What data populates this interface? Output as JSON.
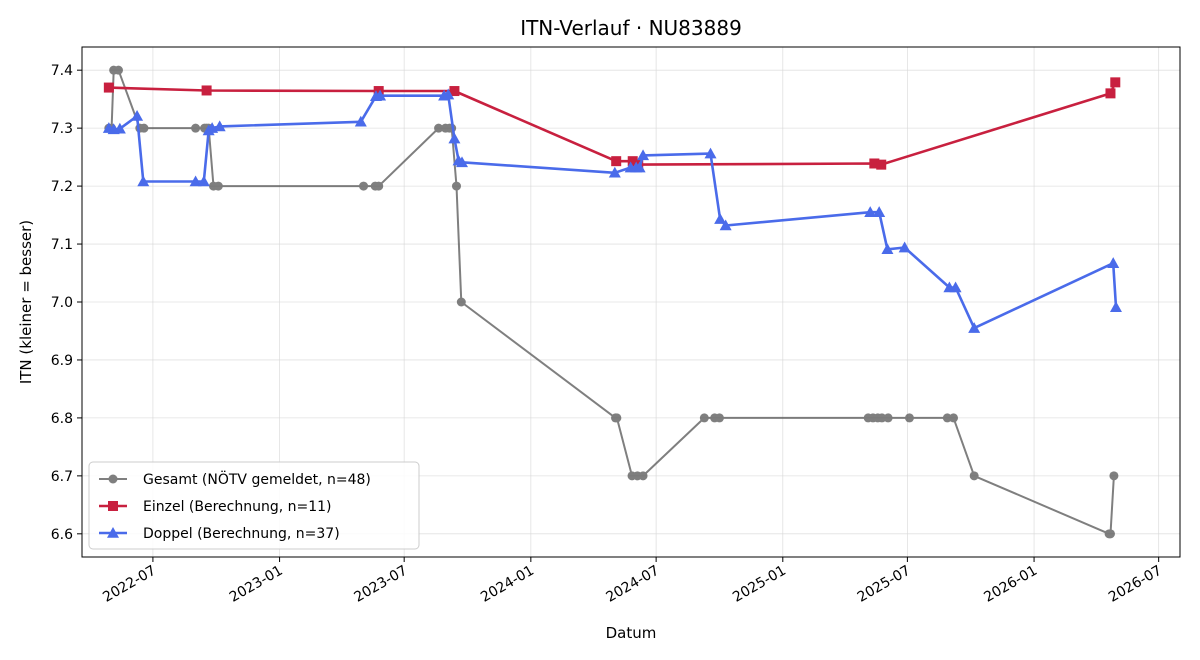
{
  "chart_data": {
    "type": "line",
    "title": "ITN-Verlauf · NU83889",
    "xlabel": "Datum",
    "ylabel": "ITN  (kleiner = besser)",
    "x_tick_labels": [
      "2022-07",
      "2023-01",
      "2023-07",
      "2024-01",
      "2024-07",
      "2025-01",
      "2025-07",
      "2026-01",
      "2026-07"
    ],
    "y_tick_labels": [
      "6.6",
      "6.7",
      "6.8",
      "6.9",
      "7.0",
      "7.1",
      "7.2",
      "7.3",
      "7.4"
    ],
    "xlim": [
      "2022-03-20",
      "2026-08-01"
    ],
    "ylim": [
      6.56,
      7.44
    ],
    "grid": true,
    "legend_position": "lower-left",
    "series": [
      {
        "name": "Gesamt (NÖTV gemeldet, n=48)",
        "color": "#555555",
        "marker": "circle",
        "points": [
          [
            "2022-04-28",
            7.3
          ],
          [
            "2022-05-02",
            7.3
          ],
          [
            "2022-05-05",
            7.4
          ],
          [
            "2022-05-12",
            7.4
          ],
          [
            "2022-06-12",
            7.3
          ],
          [
            "2022-06-18",
            7.3
          ],
          [
            "2022-09-01",
            7.3
          ],
          [
            "2022-09-14",
            7.3
          ],
          [
            "2022-09-17",
            7.3
          ],
          [
            "2022-09-20",
            7.3
          ],
          [
            "2022-09-27",
            7.2
          ],
          [
            "2022-10-04",
            7.2
          ],
          [
            "2023-05-03",
            7.2
          ],
          [
            "2023-05-20",
            7.2
          ],
          [
            "2023-05-25",
            7.2
          ],
          [
            "2023-08-20",
            7.3
          ],
          [
            "2023-08-30",
            7.3
          ],
          [
            "2023-09-05",
            7.3
          ],
          [
            "2023-09-08",
            7.3
          ],
          [
            "2023-09-15",
            7.2
          ],
          [
            "2023-09-22",
            7.0
          ],
          [
            "2024-05-03",
            6.8
          ],
          [
            "2024-05-05",
            6.8
          ],
          [
            "2024-05-27",
            6.7
          ],
          [
            "2024-06-04",
            6.7
          ],
          [
            "2024-06-12",
            6.7
          ],
          [
            "2024-09-09",
            6.8
          ],
          [
            "2024-09-24",
            6.8
          ],
          [
            "2024-10-01",
            6.8
          ],
          [
            "2025-05-05",
            6.8
          ],
          [
            "2025-05-12",
            6.8
          ],
          [
            "2025-05-19",
            6.8
          ],
          [
            "2025-05-25",
            6.8
          ],
          [
            "2025-06-03",
            6.8
          ],
          [
            "2025-07-04",
            6.8
          ],
          [
            "2025-08-28",
            6.8
          ],
          [
            "2025-09-06",
            6.8
          ],
          [
            "2025-10-06",
            6.7
          ],
          [
            "2026-04-20",
            6.6
          ],
          [
            "2026-04-22",
            6.6
          ],
          [
            "2026-04-27",
            6.7
          ]
        ]
      },
      {
        "name": "Einzel (Berechnung, n=11)",
        "color": "#c8203f",
        "marker": "square",
        "points": [
          [
            "2022-04-28",
            7.37
          ],
          [
            "2022-09-17",
            7.365
          ],
          [
            "2023-05-25",
            7.364
          ],
          [
            "2023-09-12",
            7.364
          ],
          [
            "2024-05-04",
            7.243
          ],
          [
            "2024-05-28",
            7.243
          ],
          [
            "2024-06-05",
            7.237
          ],
          [
            "2025-05-14",
            7.239
          ],
          [
            "2025-05-24",
            7.237
          ],
          [
            "2026-04-22",
            7.36
          ],
          [
            "2026-04-29",
            7.379
          ]
        ]
      },
      {
        "name": "Doppel (Berechnung, n=37)",
        "color": "#4a6bea",
        "marker": "triangle",
        "points": [
          [
            "2022-04-28",
            7.3
          ],
          [
            "2022-05-05",
            7.298
          ],
          [
            "2022-05-14",
            7.299
          ],
          [
            "2022-06-08",
            7.321
          ],
          [
            "2022-06-17",
            7.208
          ],
          [
            "2022-09-01",
            7.208
          ],
          [
            "2022-09-13",
            7.208
          ],
          [
            "2022-09-20",
            7.296
          ],
          [
            "2022-09-25",
            7.3
          ],
          [
            "2022-10-06",
            7.303
          ],
          [
            "2023-04-29",
            7.311
          ],
          [
            "2023-05-21",
            7.355
          ],
          [
            "2023-05-27",
            7.356
          ],
          [
            "2023-08-28",
            7.356
          ],
          [
            "2023-09-03",
            7.358
          ],
          [
            "2023-09-12",
            7.282
          ],
          [
            "2023-09-18",
            7.244
          ],
          [
            "2023-09-23",
            7.241
          ],
          [
            "2024-05-02",
            7.223
          ],
          [
            "2024-05-25",
            7.232
          ],
          [
            "2024-06-02",
            7.232
          ],
          [
            "2024-06-07",
            7.232
          ],
          [
            "2024-06-12",
            7.253
          ],
          [
            "2024-09-18",
            7.256
          ],
          [
            "2024-10-02",
            7.143
          ],
          [
            "2024-10-10",
            7.132
          ],
          [
            "2025-05-08",
            7.155
          ],
          [
            "2025-05-21",
            7.155
          ],
          [
            "2025-06-02",
            7.091
          ],
          [
            "2025-06-27",
            7.094
          ],
          [
            "2025-08-31",
            7.025
          ],
          [
            "2025-09-09",
            7.025
          ],
          [
            "2025-10-06",
            6.955
          ],
          [
            "2026-04-26",
            7.067
          ],
          [
            "2026-04-30",
            6.991
          ]
        ]
      }
    ]
  }
}
